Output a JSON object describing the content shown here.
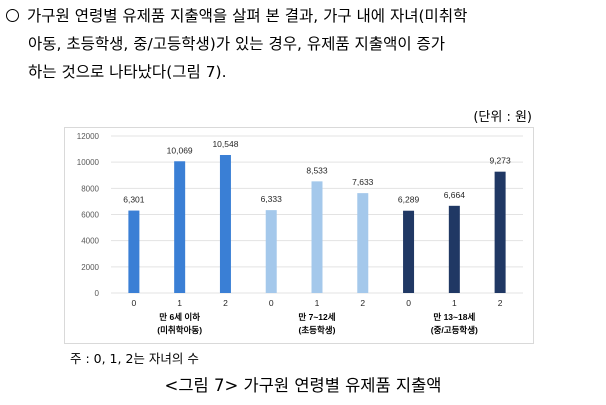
{
  "paragraph": {
    "line1": "가구원 연령별 유제품 지출액을 살펴 본 결과, 가구 내에 자녀(미취학",
    "line2": "아동, 초등학생, 중/고등학생)가 있는 경우, 유제품 지출액이 증가",
    "line3": "하는 것으로 나타났다(그림 7)."
  },
  "unit_label": "(단위 : 원)",
  "chart_data": {
    "type": "bar",
    "ylim": [
      0,
      12000
    ],
    "yticks": [
      "0",
      "2000",
      "4000",
      "6000",
      "8000",
      "10000",
      "12000"
    ],
    "grid": true,
    "groups": [
      {
        "label": "만 6세 이하",
        "sublabel": "(미취학아동)",
        "color": "#3a7fd5",
        "categories": [
          "0",
          "1",
          "2"
        ],
        "values": [
          6301,
          10069,
          10548
        ],
        "value_labels": [
          "6,301",
          "10,069",
          "10,548"
        ]
      },
      {
        "label": "만 7~12세",
        "sublabel": "(초등학생)",
        "color": "#a4c8eb",
        "categories": [
          "0",
          "1",
          "2"
        ],
        "values": [
          6333,
          8533,
          7633
        ],
        "value_labels": [
          "6,333",
          "8,533",
          "7,633"
        ]
      },
      {
        "label": "만 13~18세",
        "sublabel": "(중/고등학생)",
        "color": "#203864",
        "categories": [
          "0",
          "1",
          "2"
        ],
        "values": [
          6289,
          6664,
          9273
        ],
        "value_labels": [
          "6,289",
          "6,664",
          "9,273"
        ]
      }
    ]
  },
  "note": "주 : 0, 1, 2는 자녀의 수",
  "caption": "<그림 7> 가구원 연령별 유제품 지출액"
}
